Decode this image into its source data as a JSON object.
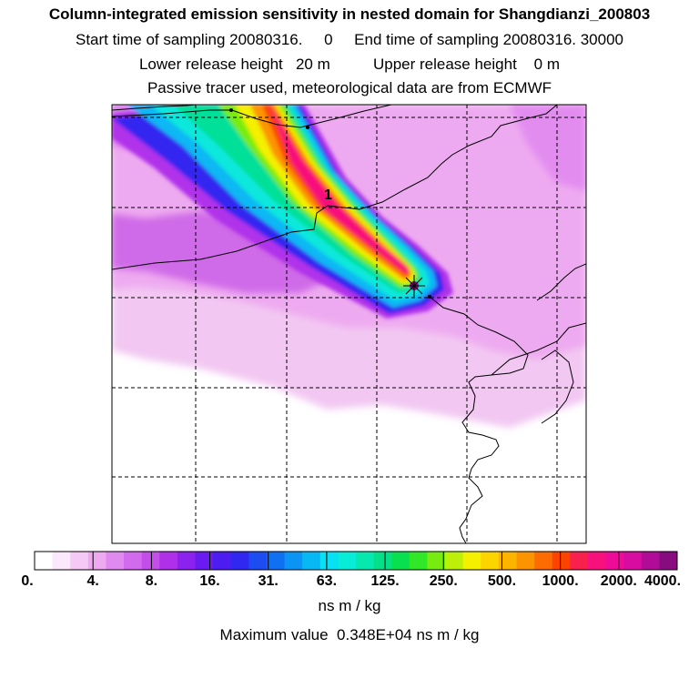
{
  "header": {
    "title": "Column-integrated emission sensitivity in nested domain for Shangdianzi_200803",
    "line2": "Start time of sampling 20080316.     0     End time of sampling 20080316. 30000",
    "line3": "Lower release height   20 m          Upper release height    0 m",
    "line4": "Passive tracer used, meteorological data are from ECMWF"
  },
  "chart_data": {
    "type": "heatmap",
    "title": "Column-integrated emission sensitivity in nested domain for Shangdianzi_200803",
    "units": "ns m / kg",
    "plume_label": "1",
    "colorbar": {
      "tick_labels": [
        "0.",
        "4.",
        "8.",
        "16.",
        "31.",
        "63.",
        "125.",
        "250.",
        "500.",
        "1000.",
        "2000.",
        "4000."
      ],
      "tick_values": [
        0,
        4,
        8,
        16,
        31,
        63,
        125,
        250,
        500,
        1000,
        2000,
        4000
      ],
      "colors": [
        "#ffffff",
        "#fce8fc",
        "#f5c8f5",
        "#eeaaf0",
        "#e08af0",
        "#d26aee",
        "#c44eea",
        "#b030ea",
        "#8c22ee",
        "#6a1cf0",
        "#4c1cf0",
        "#3028f0",
        "#1c4cf2",
        "#1070f2",
        "#0c94f4",
        "#08b8f4",
        "#08e0f4",
        "#08ecd8",
        "#06e8b0",
        "#04e088",
        "#08e050",
        "#30e828",
        "#78ec10",
        "#bcf008",
        "#f4f000",
        "#fcd400",
        "#fcb400",
        "#fc9400",
        "#fc6c00",
        "#fc4400",
        "#f8204c",
        "#f8107c",
        "#ec0c98",
        "#d80ca0",
        "#b00c98",
        "#880c80"
      ]
    },
    "max_value": 3480,
    "max_value_text": "Maximum value  0.348E+04 ns m / kg",
    "receptor": "Shangdianzi",
    "grid": true
  }
}
